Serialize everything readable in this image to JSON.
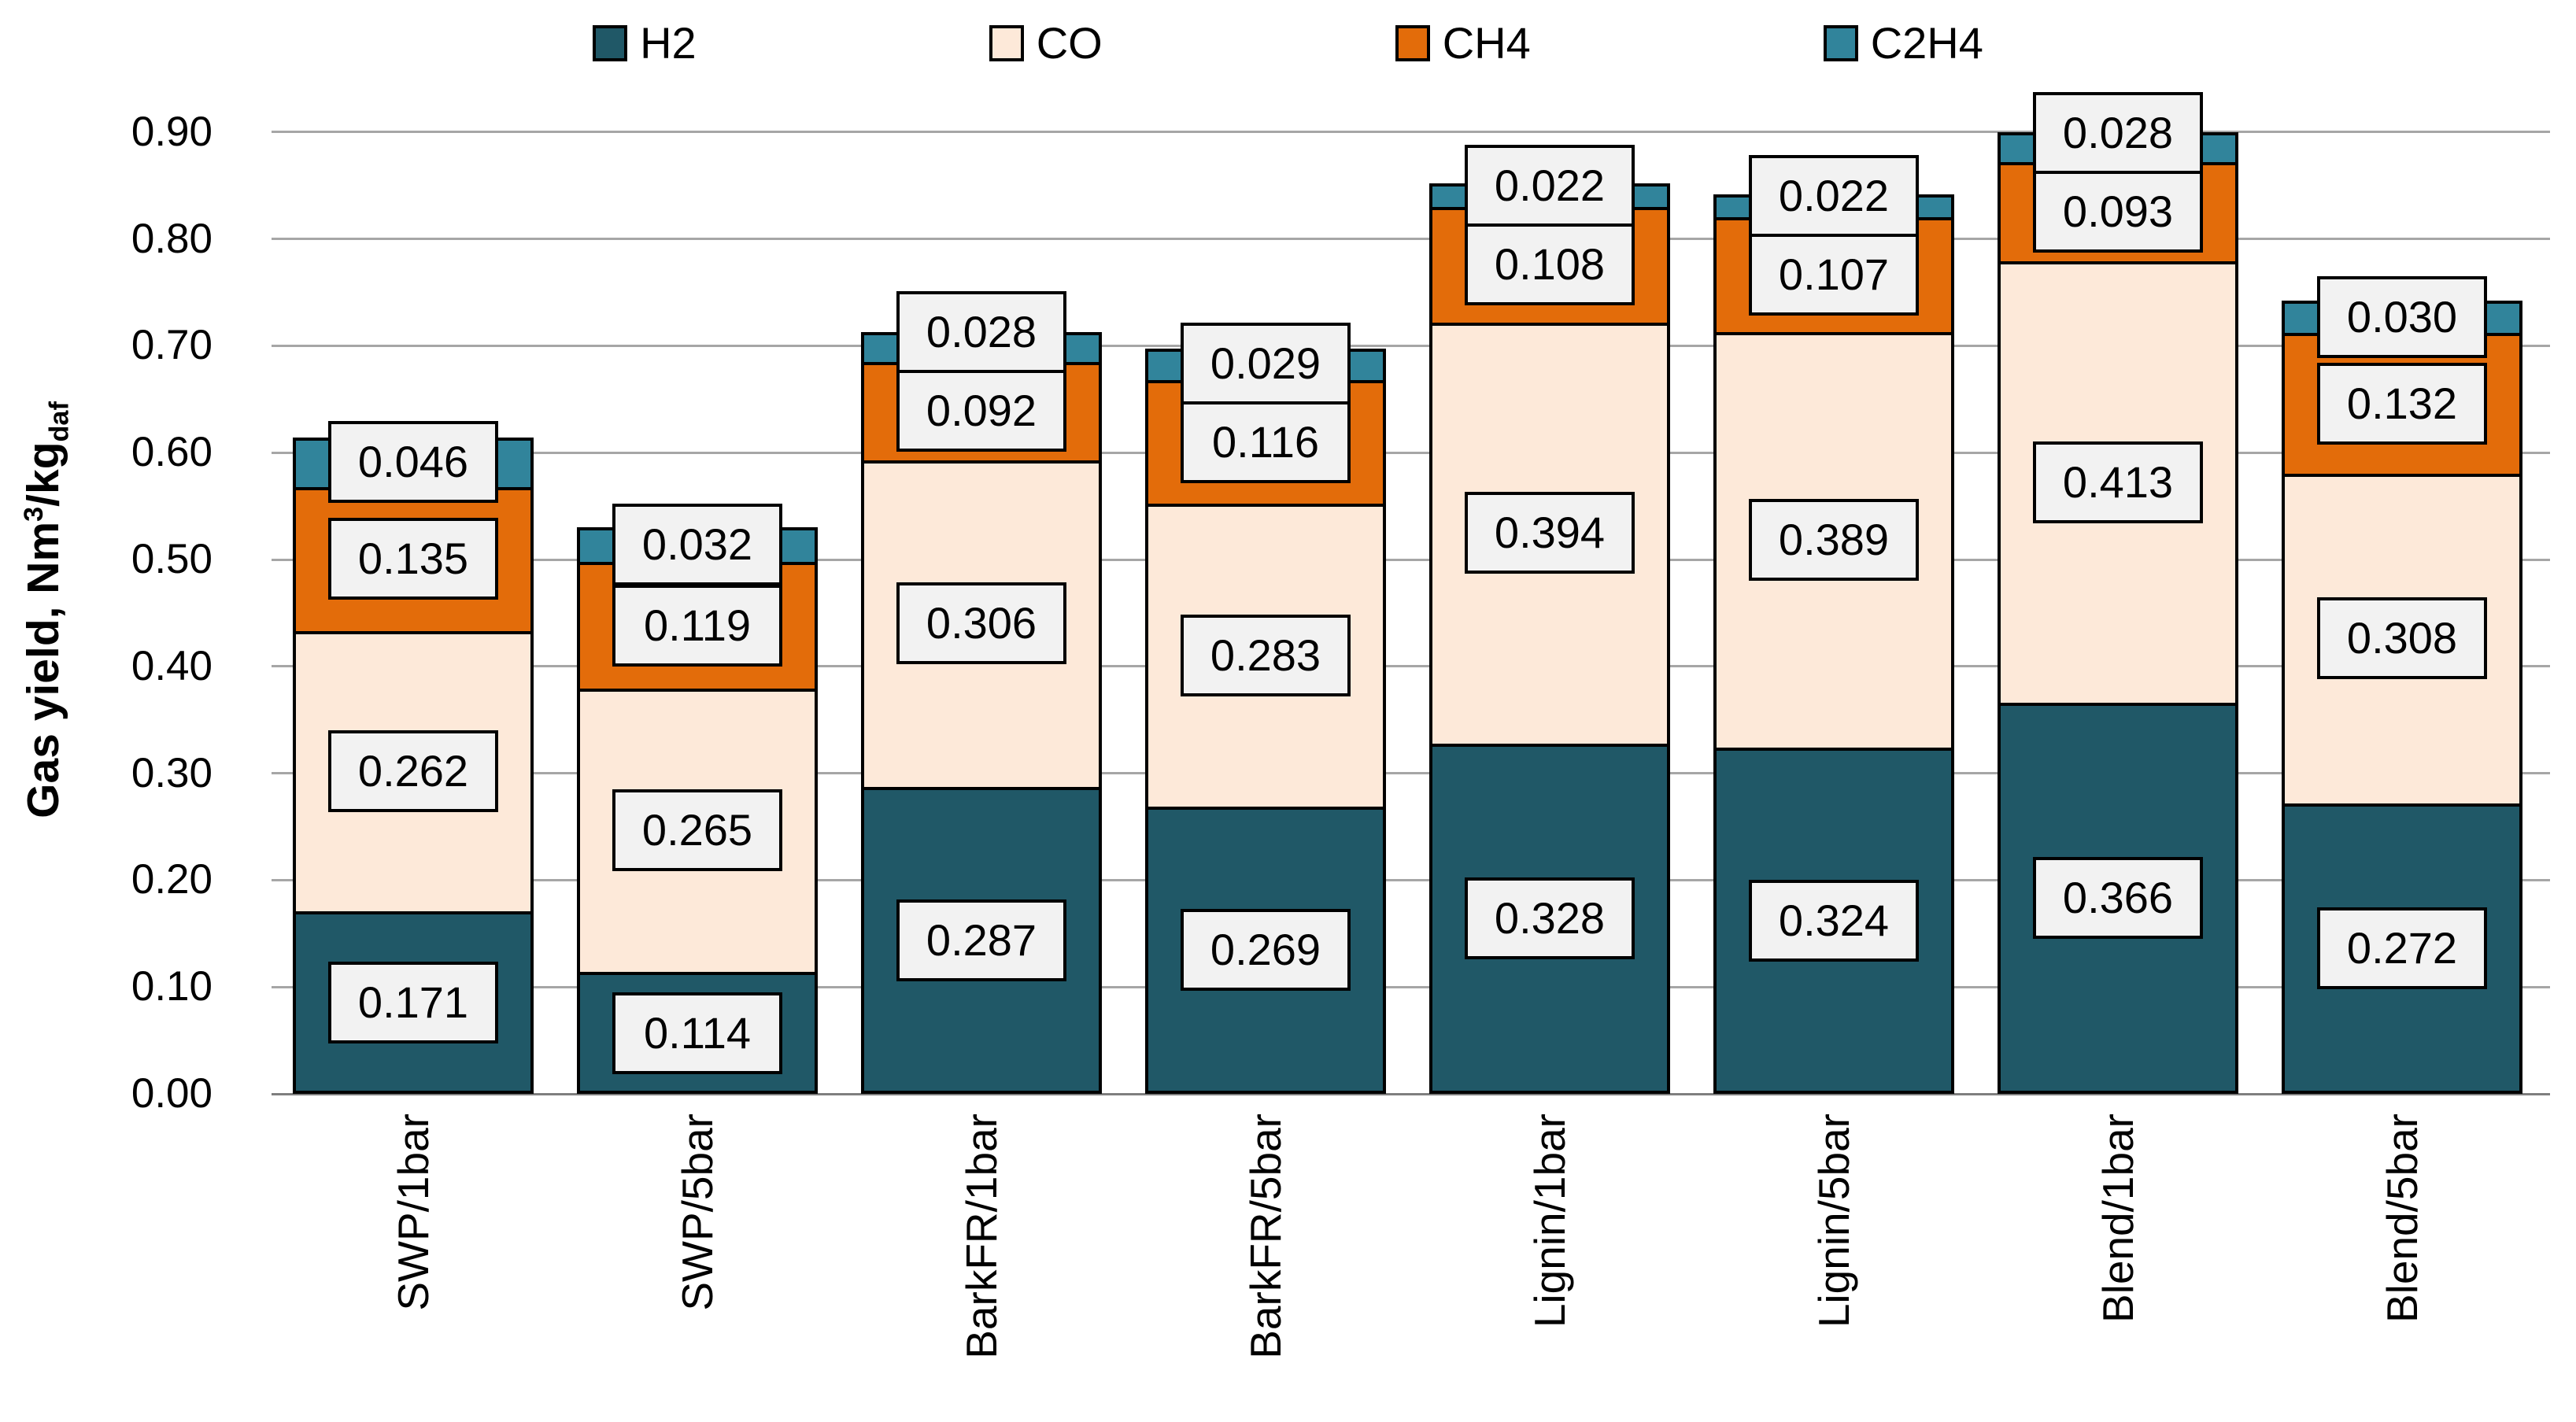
{
  "chart_data": {
    "type": "bar",
    "stacked": true,
    "title": "",
    "ylabel": "Gas yield, Nm³/kg_daf",
    "ylabel_parts": {
      "prefix": "Gas yield, Nm",
      "sup": "3",
      "mid": "/kg",
      "sub": "daf"
    },
    "ylim": [
      0.0,
      0.9
    ],
    "ytick_step": 0.1,
    "ytick_labels": [
      "0.00",
      "0.10",
      "0.20",
      "0.30",
      "0.40",
      "0.50",
      "0.60",
      "0.70",
      "0.80",
      "0.90"
    ],
    "grid": true,
    "legend_position": "top",
    "categories": [
      "SWP/1bar",
      "SWP/5bar",
      "BarkFR/1bar",
      "BarkFR/5bar",
      "Lignin/1bar",
      "Lignin/5bar",
      "Blend/1bar",
      "Blend/5bar"
    ],
    "series": [
      {
        "name": "H2",
        "color": "#205867",
        "values": [
          0.171,
          0.114,
          0.287,
          0.269,
          0.328,
          0.324,
          0.366,
          0.272
        ]
      },
      {
        "name": "CO",
        "color": "#FDE9D9",
        "values": [
          0.262,
          0.265,
          0.306,
          0.283,
          0.394,
          0.389,
          0.413,
          0.308
        ]
      },
      {
        "name": "CH4",
        "color": "#E36C0A",
        "values": [
          0.135,
          0.119,
          0.092,
          0.116,
          0.108,
          0.107,
          0.093,
          0.132
        ]
      },
      {
        "name": "C2H4",
        "color": "#31849B",
        "values": [
          0.046,
          0.032,
          0.028,
          0.029,
          0.022,
          0.022,
          0.028,
          0.03
        ]
      }
    ],
    "data_label_decimals": 3,
    "colors": {
      "gridline": "#A6A6A6",
      "axis_line": "#7F7F7F",
      "label_box_bg": "#F2F2F2",
      "label_box_border": "#000000",
      "bar_border": "#000000",
      "text": "#000000",
      "background": "#FFFFFF"
    }
  }
}
